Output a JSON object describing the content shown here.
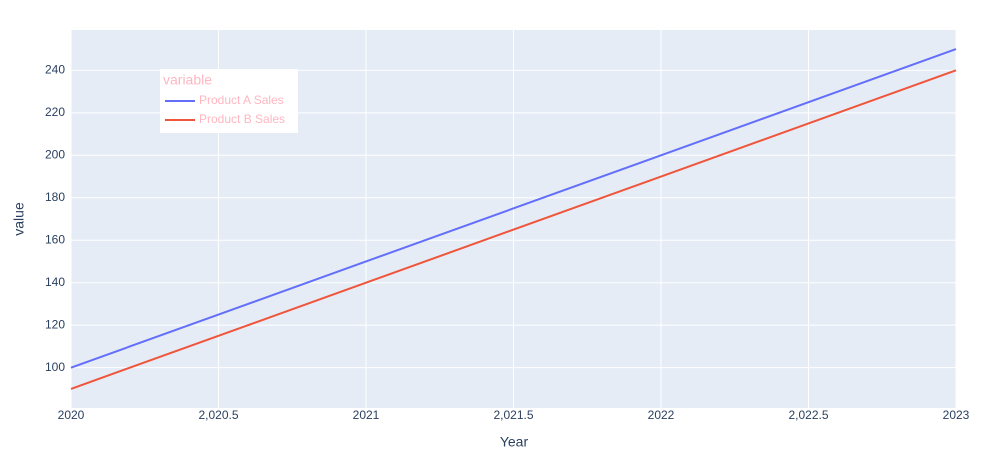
{
  "chart_data": {
    "type": "line",
    "x": [
      2020,
      2021,
      2022,
      2023
    ],
    "series": [
      {
        "name": "Product A Sales",
        "color": "#636efa",
        "values": [
          100,
          150,
          200,
          250
        ]
      },
      {
        "name": "Product B Sales",
        "color": "#ef553b",
        "values": [
          90,
          140,
          190,
          240
        ]
      }
    ],
    "xlim": [
      2020,
      2023
    ],
    "xticks": [
      2020,
      {
        "value": 2020.5,
        "label": "2,020.5"
      },
      2021,
      {
        "value": 2021.5,
        "label": "2,021.5"
      },
      2022,
      {
        "value": 2022.5,
        "label": "2,022.5"
      },
      2023
    ],
    "ylim": [
      81,
      259
    ],
    "yticks": [
      100,
      120,
      140,
      160,
      180,
      200,
      220,
      240
    ],
    "x_label": "Year",
    "y_label": "value",
    "legend_title": "variable",
    "legend_position": "top-left",
    "grid": true
  }
}
